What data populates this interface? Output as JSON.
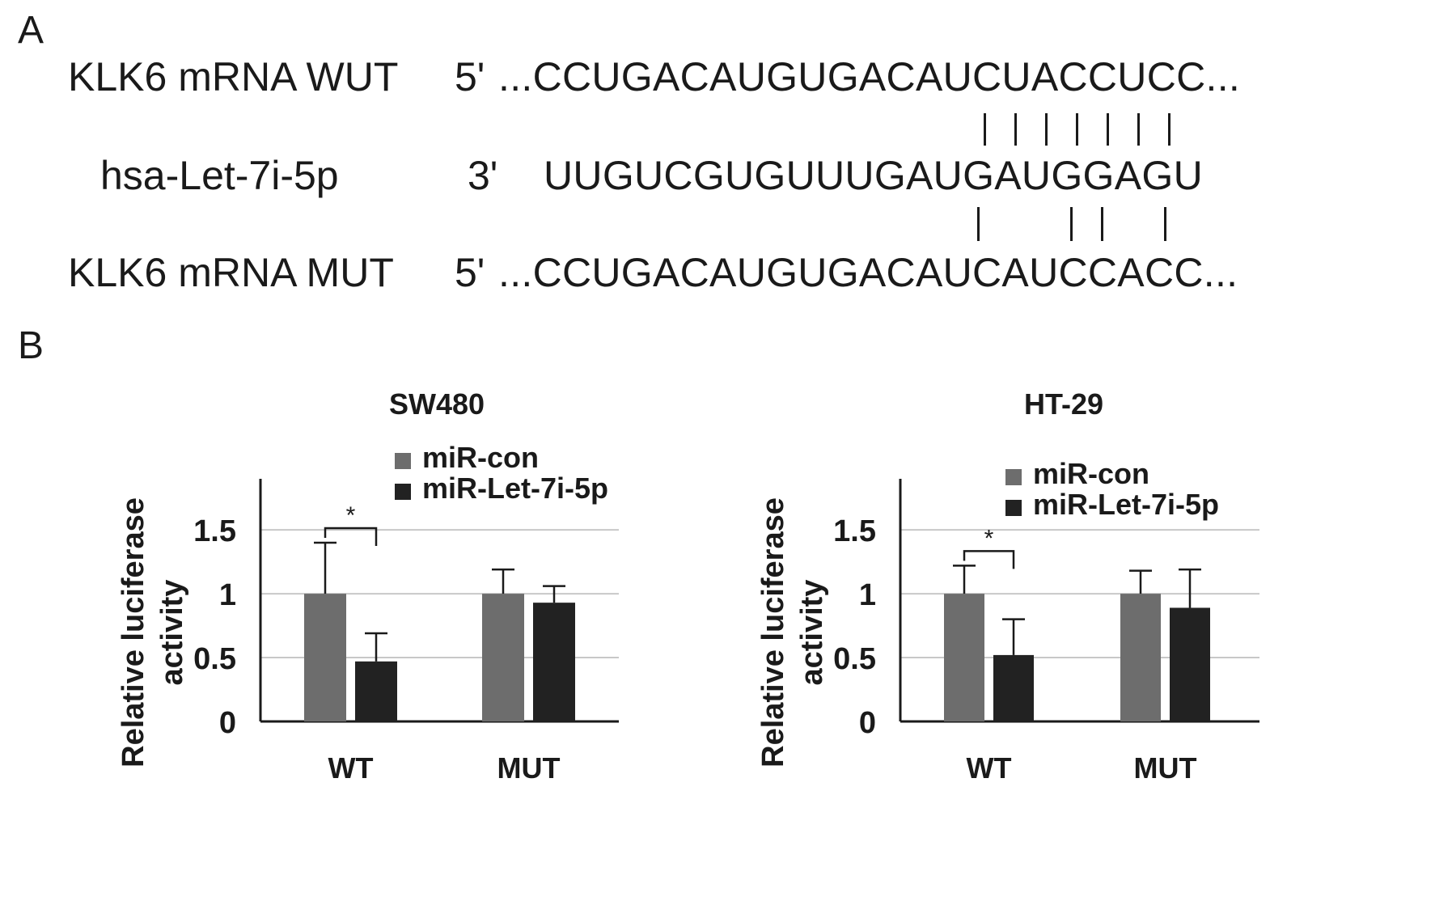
{
  "panel_a": {
    "letter": "A",
    "rows": [
      {
        "label": "KLK6 mRNA WUT",
        "prime": "5'",
        "sequence": "...CCUGACAUGUGACAUCUACCUCC..."
      },
      {
        "label": "hsa-Let-7i-5p",
        "prime": "3'",
        "sequence": "UUGUCGUGUUUGAUGAUGGAGU"
      },
      {
        "label": "KLK6 mRNA MUT",
        "prime": "5'",
        "sequence": "...CCUGACAUGUGACAUCAUCCACC..."
      }
    ],
    "pairing_upper_count": 7,
    "pairing_lower_count": 4
  },
  "panel_b": {
    "letter": "B"
  },
  "chart_data": [
    {
      "type": "bar",
      "title": "SW480",
      "ylabel": "Relative luciferase activity",
      "xlabel": "",
      "categories": [
        "WT",
        "MUT"
      ],
      "ylim": [
        0,
        1.9
      ],
      "yticks": [
        0,
        0.5,
        1,
        1.5
      ],
      "ytick_labels": [
        "0",
        "0.5",
        "1",
        "1.5"
      ],
      "grid": true,
      "legend_position": "top",
      "series": [
        {
          "name": "miR-con",
          "color": "#6d6d6d",
          "values": [
            1.0,
            1.0
          ],
          "errors": [
            0.4,
            0.19
          ]
        },
        {
          "name": "miR-Let-7i-5p",
          "color": "#222222",
          "values": [
            0.47,
            0.93
          ],
          "errors": [
            0.22,
            0.13
          ]
        }
      ],
      "significance": [
        {
          "category": "WT",
          "label": "*"
        }
      ]
    },
    {
      "type": "bar",
      "title": "HT-29",
      "ylabel": "Relative luciferase activity",
      "xlabel": "",
      "categories": [
        "WT",
        "MUT"
      ],
      "ylim": [
        0,
        1.9
      ],
      "yticks": [
        0,
        0.5,
        1,
        1.5
      ],
      "ytick_labels": [
        "0",
        "0.5",
        "1",
        "1.5"
      ],
      "grid": true,
      "legend_position": "top-right",
      "series": [
        {
          "name": "miR-con",
          "color": "#6d6d6d",
          "values": [
            1.0,
            1.0
          ],
          "errors": [
            0.22,
            0.18
          ]
        },
        {
          "name": "miR-Let-7i-5p",
          "color": "#222222",
          "values": [
            0.52,
            0.89
          ],
          "errors": [
            0.28,
            0.3
          ]
        }
      ],
      "significance": [
        {
          "category": "WT",
          "label": "*"
        }
      ]
    }
  ]
}
